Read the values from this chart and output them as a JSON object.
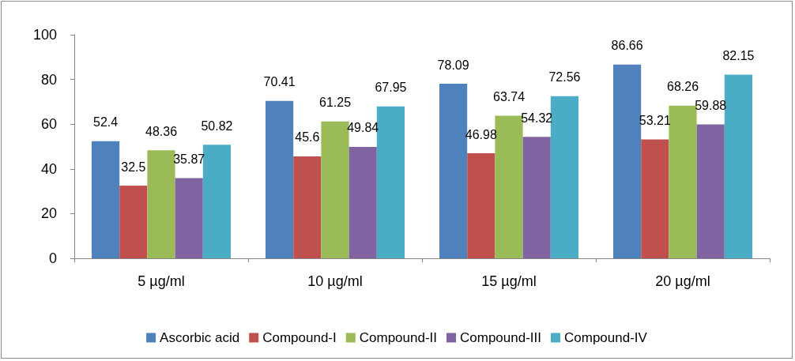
{
  "chart_data": {
    "type": "bar",
    "categories": [
      "5 µg/ml",
      "10 µg/ml",
      "15 µg/ml",
      "20 µg/ml"
    ],
    "series": [
      {
        "name": "Ascorbic acid",
        "color": "#4f81bd",
        "values": [
          52.4,
          70.41,
          78.09,
          86.66
        ]
      },
      {
        "name": "Compound-I",
        "color": "#c0504d",
        "values": [
          32.5,
          45.6,
          46.98,
          53.21
        ]
      },
      {
        "name": "Compound-II",
        "color": "#9bbb59",
        "values": [
          48.36,
          61.25,
          63.74,
          68.26
        ]
      },
      {
        "name": "Compound-III",
        "color": "#8064a2",
        "values": [
          35.87,
          49.84,
          54.32,
          59.88
        ]
      },
      {
        "name": "Compound-IV",
        "color": "#4bacc6",
        "values": [
          50.82,
          67.95,
          72.56,
          82.15
        ]
      }
    ],
    "ylim": [
      0,
      100
    ],
    "yticks": [
      0,
      20,
      40,
      60,
      80,
      100
    ],
    "grid": false,
    "legend": "bottom",
    "data_labels": true
  }
}
